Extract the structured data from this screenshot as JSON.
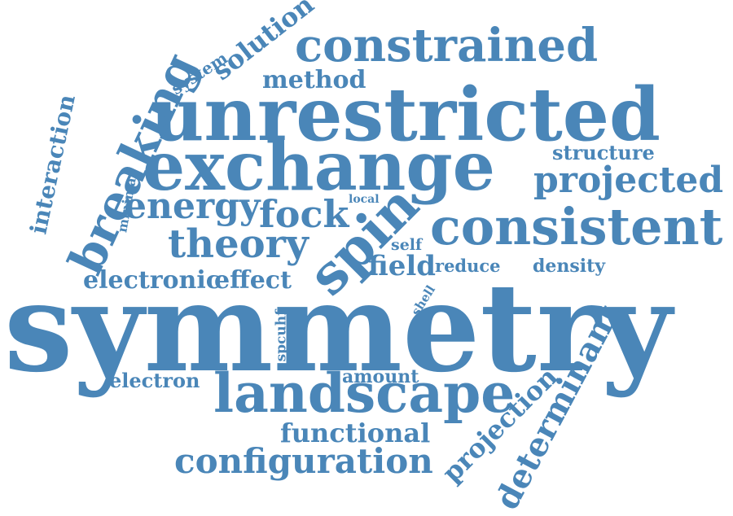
{
  "cloud": {
    "color": "#4a86b8",
    "words": [
      {
        "id": "symmetry",
        "text": "symmetry"
      },
      {
        "id": "unrestricted",
        "text": "unrestricted"
      },
      {
        "id": "exchange",
        "text": "exchange"
      },
      {
        "id": "landscape",
        "text": "landscape"
      },
      {
        "id": "consistent",
        "text": "consistent"
      },
      {
        "id": "constrained",
        "text": "constrained"
      },
      {
        "id": "spin",
        "text": "spin"
      },
      {
        "id": "breaking",
        "text": "breaking"
      },
      {
        "id": "theory",
        "text": "theory"
      },
      {
        "id": "energy",
        "text": "energy"
      },
      {
        "id": "projected",
        "text": "projected"
      },
      {
        "id": "configuration",
        "text": "configuration"
      },
      {
        "id": "determinant",
        "text": "determinant"
      },
      {
        "id": "fock",
        "text": "fock"
      },
      {
        "id": "projection",
        "text": "projection"
      },
      {
        "id": "method",
        "text": "method"
      },
      {
        "id": "solution",
        "text": "solution"
      },
      {
        "id": "functional",
        "text": "functional"
      },
      {
        "id": "interaction",
        "text": "interaction"
      },
      {
        "id": "field",
        "text": "field"
      },
      {
        "id": "electronic",
        "text": "electronic"
      },
      {
        "id": "effect",
        "text": "effect"
      },
      {
        "id": "structure",
        "text": "structure"
      },
      {
        "id": "electron",
        "text": "electron"
      },
      {
        "id": "amount",
        "text": "amount"
      },
      {
        "id": "density",
        "text": "density"
      },
      {
        "id": "reduce",
        "text": "reduce"
      },
      {
        "id": "system",
        "text": "system"
      },
      {
        "id": "self",
        "text": "self"
      },
      {
        "id": "spcuhf",
        "text": "spcuhf"
      },
      {
        "id": "minima",
        "text": "minima"
      },
      {
        "id": "shell",
        "text": "shell"
      },
      {
        "id": "local",
        "text": "local"
      }
    ]
  }
}
